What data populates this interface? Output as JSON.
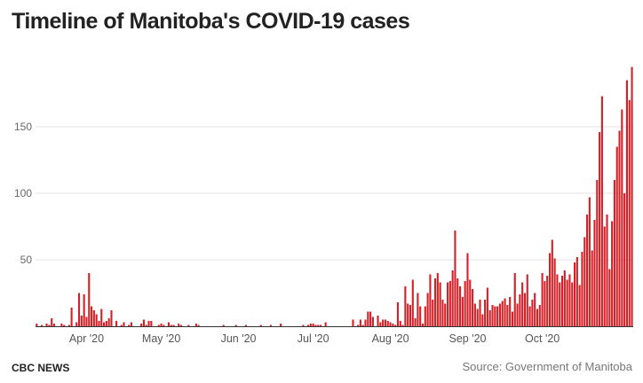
{
  "chart_data": {
    "type": "bar",
    "title": "Timeline of Manitoba's COVID-19 cases",
    "xlabel": "",
    "ylabel": "",
    "start_date": "2020-03-12",
    "end_date": "2020-10-31",
    "ylim": [
      0,
      200
    ],
    "yticks": [
      50,
      100,
      150
    ],
    "grid": true,
    "bar_color": "#d42027",
    "month_ticks": [
      {
        "label": "Apr '20",
        "day_index": 20
      },
      {
        "label": "May '20",
        "day_index": 50
      },
      {
        "label": "Jun '20",
        "day_index": 81
      },
      {
        "label": "Jul '20",
        "day_index": 111
      },
      {
        "label": "Aug '20",
        "day_index": 142
      },
      {
        "label": "Sep '20",
        "day_index": 173
      },
      {
        "label": "Oct '20",
        "day_index": 203
      }
    ],
    "values": [
      2,
      0,
      1,
      0,
      2,
      1,
      6,
      2,
      0,
      0,
      2,
      1,
      0,
      1,
      14,
      0,
      3,
      25,
      8,
      24,
      7,
      40,
      15,
      12,
      9,
      4,
      13,
      3,
      4,
      6,
      12,
      0,
      4,
      0,
      1,
      3,
      0,
      1,
      3,
      0,
      0,
      0,
      2,
      5,
      1,
      4,
      4,
      0,
      0,
      1,
      2,
      1,
      0,
      3,
      1,
      1,
      0,
      2,
      1,
      0,
      0,
      1,
      0,
      0,
      2,
      1,
      0,
      0,
      0,
      0,
      0,
      0,
      0,
      0,
      0,
      1,
      0,
      0,
      0,
      0,
      1,
      0,
      0,
      0,
      1,
      0,
      0,
      0,
      0,
      0,
      1,
      0,
      0,
      0,
      1,
      0,
      0,
      0,
      2,
      0,
      0,
      0,
      0,
      0,
      0,
      0,
      0,
      1,
      0,
      1,
      2,
      2,
      1,
      1,
      1,
      0,
      3,
      0,
      0,
      0,
      0,
      0,
      0,
      0,
      0,
      0,
      0,
      5,
      0,
      1,
      5,
      1,
      5,
      11,
      11,
      7,
      0,
      8,
      3,
      5,
      5,
      4,
      3,
      2,
      1,
      18,
      4,
      1,
      30,
      17,
      16,
      35,
      6,
      25,
      15,
      2,
      15,
      25,
      39,
      20,
      36,
      40,
      33,
      20,
      17,
      33,
      34,
      42,
      72,
      36,
      30,
      22,
      34,
      55,
      35,
      28,
      17,
      13,
      20,
      9,
      20,
      29,
      12,
      16,
      15,
      15,
      17,
      19,
      21,
      16,
      22,
      11,
      40,
      17,
      24,
      33,
      25,
      39,
      15,
      20,
      25,
      13,
      16,
      40,
      34,
      38,
      55,
      65,
      51,
      39,
      33,
      38,
      42,
      35,
      39,
      33,
      48,
      52,
      31,
      56,
      67,
      84,
      97,
      57,
      80,
      110,
      146,
      173,
      75,
      84,
      43,
      79,
      110,
      135,
      147,
      163,
      100,
      185,
      170,
      195
    ],
    "footer_brand": "CBC NEWS",
    "source": "Source: Government of Manitoba"
  }
}
